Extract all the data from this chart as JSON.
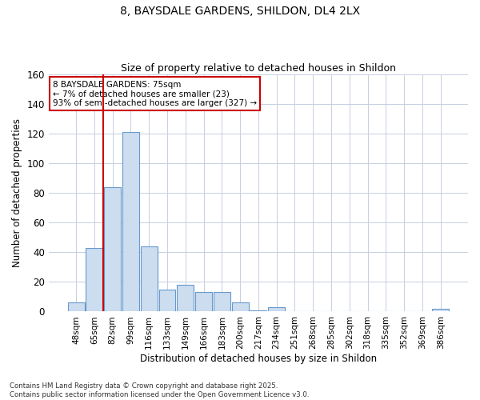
{
  "title1": "8, BAYSDALE GARDENS, SHILDON, DL4 2LX",
  "title2": "Size of property relative to detached houses in Shildon",
  "xlabel": "Distribution of detached houses by size in Shildon",
  "ylabel": "Number of detached properties",
  "categories": [
    "48sqm",
    "65sqm",
    "82sqm",
    "99sqm",
    "116sqm",
    "133sqm",
    "149sqm",
    "166sqm",
    "183sqm",
    "200sqm",
    "217sqm",
    "234sqm",
    "251sqm",
    "268sqm",
    "285sqm",
    "302sqm",
    "318sqm",
    "335sqm",
    "352sqm",
    "369sqm",
    "386sqm"
  ],
  "values": [
    6,
    43,
    84,
    121,
    44,
    15,
    18,
    13,
    13,
    6,
    1,
    3,
    0,
    0,
    0,
    0,
    0,
    0,
    0,
    0,
    2
  ],
  "bar_color": "#ccddf0",
  "bar_edge_color": "#6699cc",
  "grid_color": "#c5cfe0",
  "bg_color": "#ffffff",
  "vline_color": "#cc0000",
  "annotation_text": "8 BAYSDALE GARDENS: 75sqm\n← 7% of detached houses are smaller (23)\n93% of semi-detached houses are larger (327) →",
  "annotation_box_color": "#cc0000",
  "footnote": "Contains HM Land Registry data © Crown copyright and database right 2025.\nContains public sector information licensed under the Open Government Licence v3.0.",
  "ylim": [
    0,
    160
  ],
  "yticks": [
    0,
    20,
    40,
    60,
    80,
    100,
    120,
    140,
    160
  ]
}
